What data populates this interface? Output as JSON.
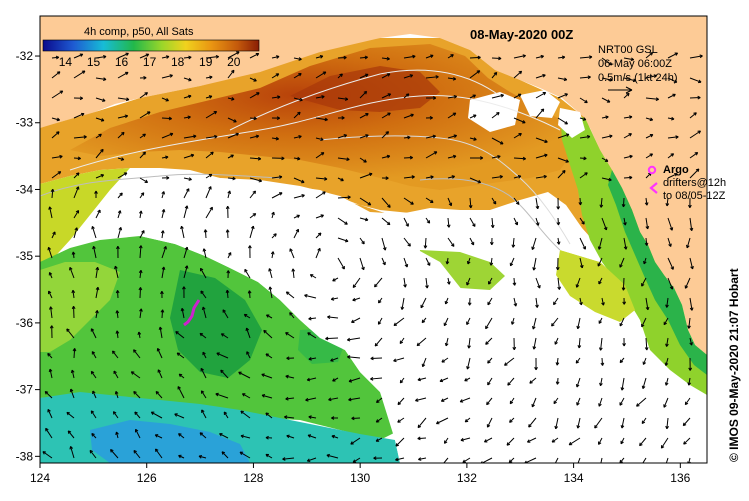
{
  "map": {
    "title": "08-May-2020 00Z",
    "colorbar": {
      "label": "4h comp, p50, All Sats",
      "ticks": [
        "14",
        "15",
        "16",
        "17",
        "18",
        "19",
        "20"
      ],
      "min": 13.2,
      "max": 20.9
    },
    "current_info": {
      "line1": "NRT00 GSL",
      "line2": "06-May 06:00Z",
      "line3": "0.5m/s (1kt 24h)"
    },
    "legend": {
      "argo_label": "Argo",
      "drifters_line1": "drifters@12h",
      "drifters_line2": "to 08/05-12Z"
    },
    "credit": "© IMOS 09-May-2020 21:07 Hobart",
    "x_ticks": [
      "124",
      "126",
      "128",
      "130",
      "132",
      "134",
      "136"
    ],
    "y_ticks": [
      "-32",
      "-33",
      "-34",
      "-35",
      "-36",
      "-37",
      "-38"
    ],
    "lon_range": [
      124,
      136.5
    ],
    "lat_range": [
      -31.4,
      -38.1
    ],
    "colors": {
      "land": "#fdcb96",
      "no_data": "#ffffff",
      "argo_marker": "#ff33ff",
      "drifter_track": "#cc22cc",
      "current_arrow": "#000000"
    }
  }
}
